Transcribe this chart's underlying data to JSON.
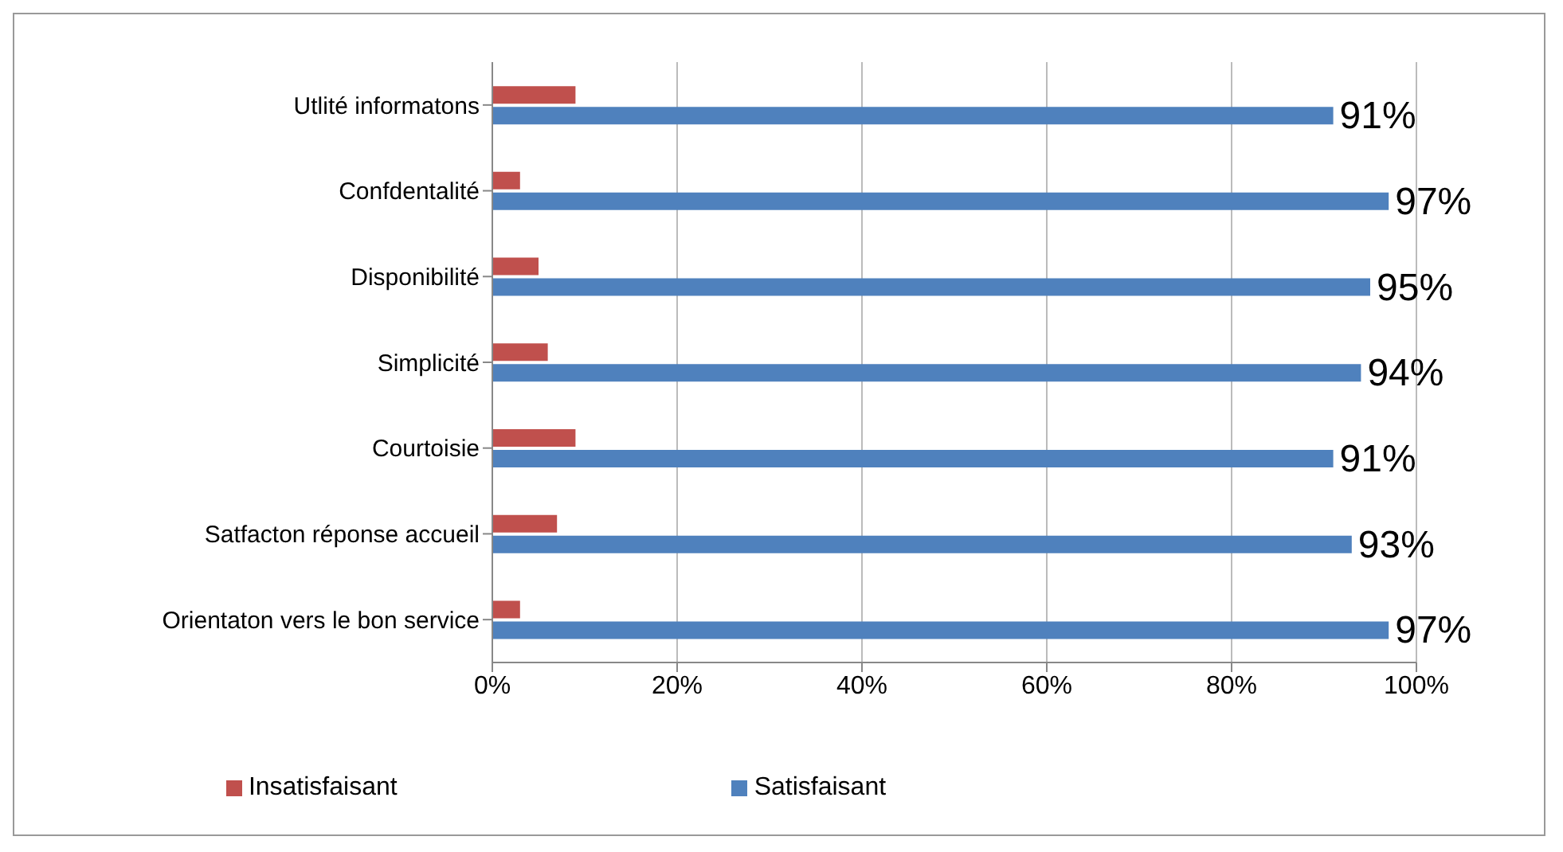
{
  "chart_data": {
    "type": "bar",
    "orientation": "horizontal",
    "categories": [
      "Utlité informatons",
      "Confdentalité",
      "Disponibilité",
      "Simplicité",
      "Courtoisie",
      "Satfacton réponse accueil",
      "Orientaton vers le bon service"
    ],
    "series": [
      {
        "name": "Insatisfaisant",
        "color": "#c0504d",
        "values": [
          9,
          3,
          5,
          6,
          9,
          7,
          3
        ]
      },
      {
        "name": "Satisfaisant",
        "color": "#4f81bd",
        "values": [
          91,
          97,
          95,
          94,
          91,
          93,
          97
        ],
        "value_labels": [
          "91%",
          "97%",
          "95%",
          "94%",
          "91%",
          "93%",
          "97%"
        ]
      }
    ],
    "xlim": [
      0,
      100
    ],
    "xticks": [
      {
        "value": 0,
        "label": "0%"
      },
      {
        "value": 20,
        "label": "20%"
      },
      {
        "value": 40,
        "label": "40%"
      },
      {
        "value": 60,
        "label": "60%"
      },
      {
        "value": 80,
        "label": "80%"
      },
      {
        "value": 100,
        "label": "100%"
      }
    ],
    "grid": "x",
    "legend": "bottom"
  }
}
